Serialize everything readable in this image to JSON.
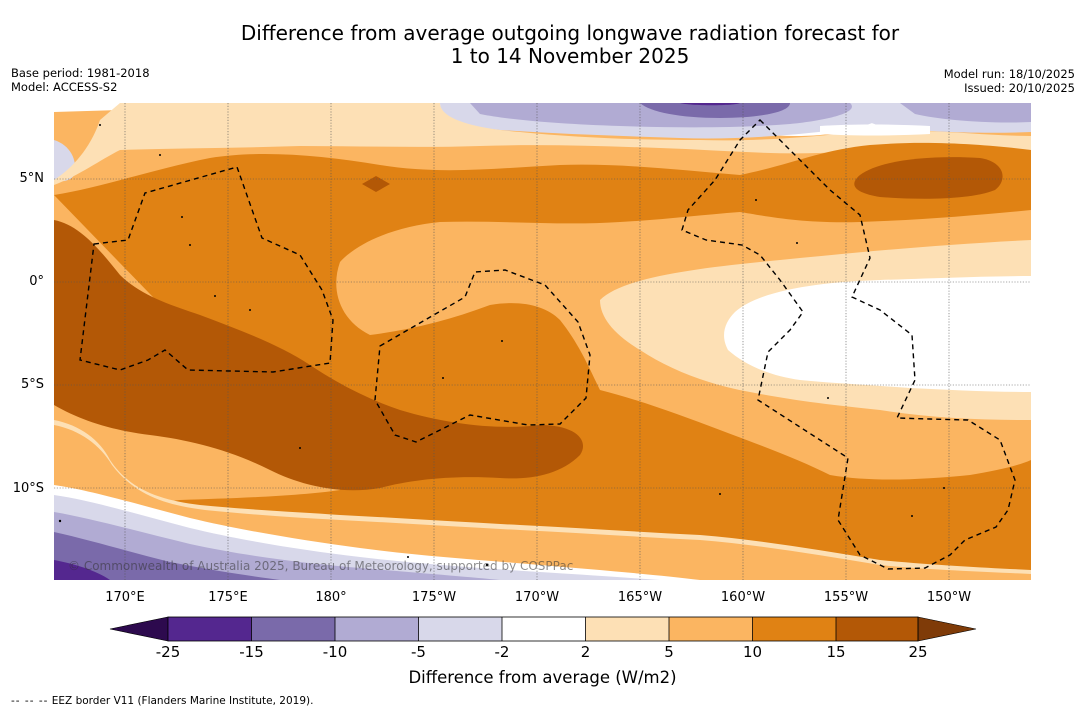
{
  "title": {
    "line1": "Difference from average outgoing longwave radiation forecast for",
    "line2": "1 to 14 November 2025"
  },
  "meta": {
    "base_period": "Base period: 1981-2018",
    "model": "Model: ACCESS-S2",
    "model_run": "Model run: 18/10/2025",
    "issued": "Issued: 20/10/2025"
  },
  "map": {
    "latitude_labels": [
      "5°N",
      "0°",
      "5°S",
      "10°S"
    ],
    "longitude_labels": [
      "170°E",
      "175°E",
      "180°",
      "175°W",
      "170°W",
      "165°W",
      "160°W",
      "155°W",
      "150°W"
    ],
    "watermark": "© Commonwealth of Australia 2025, Bureau of Meteorology, supported by COSPPac",
    "overlay": "EEZ border (dashed)"
  },
  "colorbar": {
    "title": "Difference from average (W/m2)",
    "ticks": [
      "-25",
      "-15",
      "-10",
      "-5",
      "-2",
      "2",
      "5",
      "10",
      "15",
      "25"
    ],
    "colors": {
      "below_min": "#2d0a4e",
      "n25_n15": "#54278f",
      "n15_n10": "#7a6aaa",
      "n10_n5": "#b1abd3",
      "n5_n2": "#d8d8ea",
      "n2_2": "#ffffff",
      "p2_5": "#fde0b5",
      "p5_10": "#fbb561",
      "p10_15": "#e08214",
      "p15_25": "#b35806",
      "above_max": "#7f3b08"
    }
  },
  "footer": {
    "legend_symbol": "--  --  --",
    "legend_text": "EEZ border V11 (Flanders Marine Institute, 2019)."
  }
}
